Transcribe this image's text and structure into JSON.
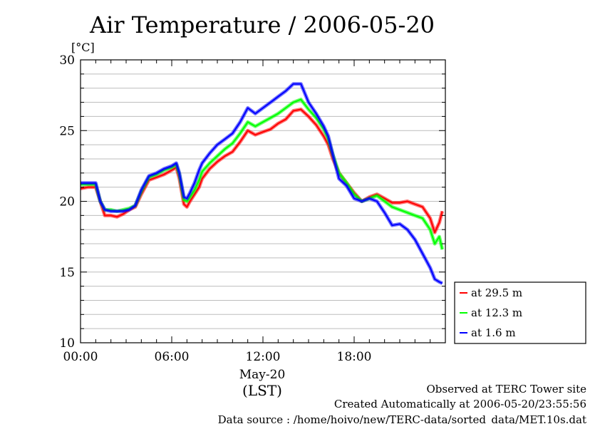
{
  "chart_data": {
    "type": "line",
    "title": "Air Temperature / 2006-05-20",
    "ylabel": "[°C]",
    "xlabel_date": "May-20",
    "xlabel_tz": "(LST)",
    "ylim": [
      10,
      30
    ],
    "xlim_hours": [
      0,
      24
    ],
    "y_ticks": [
      10,
      15,
      20,
      25,
      30
    ],
    "x_ticks": [
      {
        "hour": 0,
        "label": "00:00"
      },
      {
        "hour": 6,
        "label": "06:00"
      },
      {
        "hour": 12,
        "label": "12:00"
      },
      {
        "hour": 18,
        "label": "18:00"
      }
    ],
    "grid": true,
    "legend_position": "right",
    "series": [
      {
        "name": "at 29.5 m",
        "color": "#ff0000",
        "x": [
          0,
          0.5,
          1.0,
          1.3,
          1.6,
          2.0,
          2.4,
          2.8,
          3.2,
          3.6,
          4.0,
          4.5,
          5.0,
          5.5,
          6.0,
          6.3,
          6.5,
          6.8,
          7.0,
          7.2,
          7.5,
          7.8,
          8.0,
          8.5,
          9.0,
          9.5,
          10.0,
          10.5,
          11.0,
          11.5,
          12.0,
          12.5,
          13.0,
          13.5,
          14.0,
          14.5,
          15.0,
          15.5,
          16.0,
          16.3,
          16.6,
          17.0,
          17.5,
          18.0,
          18.5,
          19.0,
          19.5,
          20.0,
          20.5,
          21.0,
          21.5,
          22.0,
          22.5,
          23.0,
          23.3,
          23.6,
          23.8
        ],
        "y": [
          20.9,
          21.0,
          21.0,
          20.0,
          19.0,
          19.0,
          18.9,
          19.1,
          19.4,
          19.6,
          20.5,
          21.5,
          21.7,
          21.9,
          22.2,
          22.4,
          21.6,
          19.8,
          19.6,
          20.0,
          20.5,
          21.0,
          21.6,
          22.3,
          22.8,
          23.2,
          23.5,
          24.2,
          25.0,
          24.7,
          24.9,
          25.1,
          25.5,
          25.8,
          26.4,
          26.5,
          26.0,
          25.4,
          24.6,
          24.0,
          23.0,
          22.0,
          21.3,
          20.6,
          20.0,
          20.3,
          20.5,
          20.2,
          19.9,
          19.9,
          20.0,
          19.8,
          19.6,
          18.8,
          17.8,
          18.5,
          19.3
        ]
      },
      {
        "name": "at 12.3 m",
        "color": "#00ff00",
        "x": [
          0,
          0.5,
          1.0,
          1.3,
          1.6,
          2.0,
          2.4,
          2.8,
          3.2,
          3.6,
          4.0,
          4.5,
          5.0,
          5.5,
          6.0,
          6.3,
          6.5,
          6.8,
          7.0,
          7.2,
          7.5,
          7.8,
          8.0,
          8.5,
          9.0,
          9.5,
          10.0,
          10.5,
          11.0,
          11.5,
          12.0,
          12.5,
          13.0,
          13.5,
          14.0,
          14.5,
          15.0,
          15.5,
          16.0,
          16.3,
          16.6,
          17.0,
          17.5,
          18.0,
          18.5,
          19.0,
          19.5,
          20.0,
          20.5,
          21.0,
          21.5,
          22.0,
          22.5,
          23.0,
          23.3,
          23.6,
          23.8
        ],
        "y": [
          21.2,
          21.2,
          21.2,
          20.0,
          19.4,
          19.4,
          19.3,
          19.4,
          19.5,
          19.7,
          20.7,
          21.7,
          21.9,
          22.2,
          22.4,
          22.6,
          21.9,
          20.1,
          20.0,
          20.3,
          20.8,
          21.5,
          22.1,
          22.7,
          23.2,
          23.7,
          24.1,
          24.8,
          25.6,
          25.3,
          25.6,
          25.9,
          26.2,
          26.6,
          27.0,
          27.2,
          26.5,
          25.9,
          25.1,
          24.4,
          23.3,
          22.0,
          21.3,
          20.5,
          20.0,
          20.2,
          20.4,
          20.0,
          19.6,
          19.4,
          19.2,
          19.0,
          18.8,
          18.0,
          17.0,
          17.5,
          16.6
        ]
      },
      {
        "name": "at 1.6 m",
        "color": "#0000ff",
        "x": [
          0,
          0.5,
          1.0,
          1.3,
          1.6,
          2.0,
          2.4,
          2.8,
          3.2,
          3.6,
          4.0,
          4.5,
          5.0,
          5.5,
          6.0,
          6.3,
          6.5,
          6.8,
          7.0,
          7.2,
          7.5,
          7.8,
          8.0,
          8.5,
          9.0,
          9.5,
          10.0,
          10.5,
          11.0,
          11.5,
          12.0,
          12.5,
          13.0,
          13.5,
          14.0,
          14.5,
          15.0,
          15.5,
          16.0,
          16.3,
          16.6,
          17.0,
          17.5,
          18.0,
          18.5,
          19.0,
          19.5,
          20.0,
          20.5,
          21.0,
          21.5,
          22.0,
          22.5,
          23.0,
          23.3,
          23.6,
          23.8
        ],
        "y": [
          21.3,
          21.3,
          21.3,
          20.0,
          19.4,
          19.3,
          19.3,
          19.3,
          19.4,
          19.7,
          20.8,
          21.8,
          22.0,
          22.3,
          22.5,
          22.7,
          22.0,
          20.3,
          20.2,
          20.6,
          21.3,
          22.2,
          22.7,
          23.4,
          24.0,
          24.4,
          24.8,
          25.6,
          26.6,
          26.2,
          26.6,
          27.0,
          27.4,
          27.8,
          28.3,
          28.3,
          27.0,
          26.2,
          25.3,
          24.6,
          23.3,
          21.6,
          21.1,
          20.2,
          20.0,
          20.2,
          20.0,
          19.2,
          18.3,
          18.4,
          18.0,
          17.3,
          16.3,
          15.3,
          14.5,
          14.3,
          14.2
        ]
      }
    ]
  },
  "footer": {
    "site": "Observed at TERC Tower site",
    "created": "Created Automatically at 2006-05-20/23:55:56",
    "source": "Data source : /home/hoivo/new/TERC-data/sorted_data/MET.10s.dat"
  }
}
